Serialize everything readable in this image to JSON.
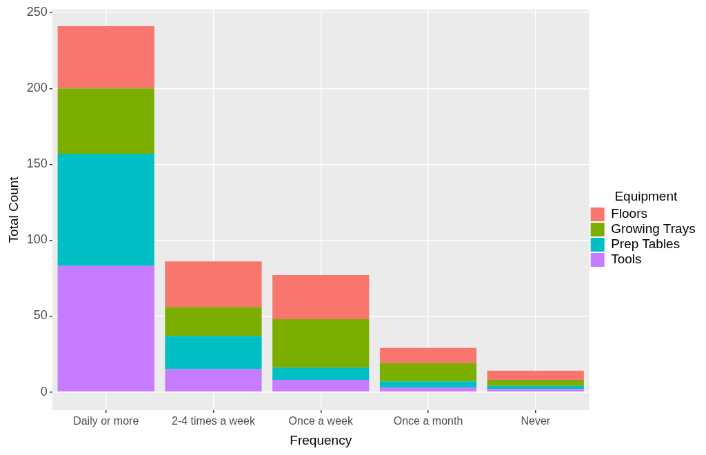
{
  "chart_data": {
    "type": "bar",
    "stacked": true,
    "xlabel": "Frequency",
    "ylabel": "Total Count",
    "legend_title": "Equipment",
    "legend": "right",
    "categories": [
      "Daily or more",
      "2-4 times a week",
      "Once a week",
      "Once a month",
      "Never"
    ],
    "series": [
      {
        "name": "Tools",
        "color": "#c77cff",
        "values": [
          83,
          15,
          8,
          3,
          2
        ]
      },
      {
        "name": "Prep Tables",
        "color": "#00bfc4",
        "values": [
          74,
          22,
          8,
          4,
          2
        ]
      },
      {
        "name": "Growing Trays",
        "color": "#7cae00",
        "values": [
          43,
          19,
          32,
          12,
          4
        ]
      },
      {
        "name": "Floors",
        "color": "#f8766d",
        "values": [
          41,
          30,
          29,
          10,
          6
        ]
      }
    ],
    "ylim": [
      -12,
      252
    ],
    "yticks": [
      0,
      50,
      100,
      150,
      200,
      250
    ],
    "grid": true
  }
}
